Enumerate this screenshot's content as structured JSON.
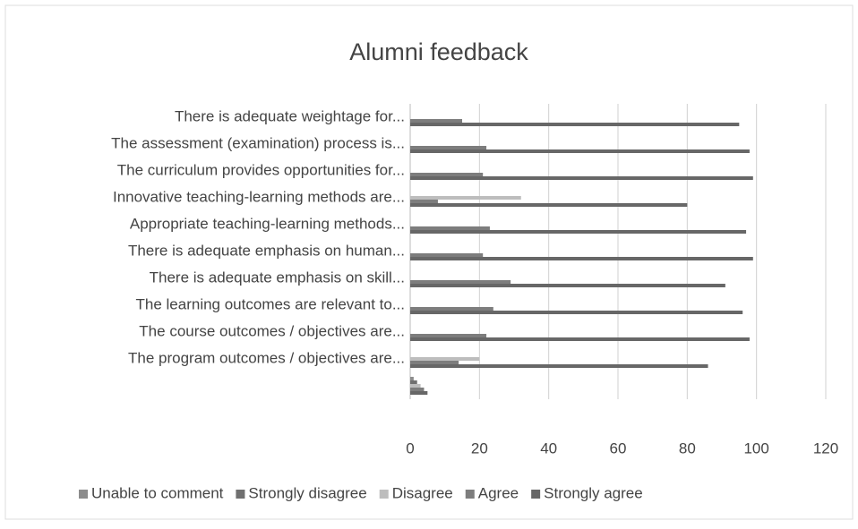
{
  "chart_data": {
    "type": "bar",
    "orientation": "horizontal",
    "title": "Alumni feedback",
    "categories": [
      "There is adequate weightage for...",
      "The assessment (examination) process is...",
      "The curriculum provides opportunities for...",
      "Innovative teaching-learning methods are...",
      "Appropriate teaching-learning methods...",
      "There is adequate emphasis on human...",
      "There is adequate emphasis on skill...",
      "The learning outcomes are relevant to...",
      "The course outcomes / objectives are...",
      "The program outcomes / objectives are...",
      null
    ],
    "series": [
      {
        "name": "Unable to comment",
        "color": "#8c8c8c",
        "values": [
          0,
          0,
          0,
          0,
          0,
          0,
          0,
          0,
          0,
          0,
          1
        ]
      },
      {
        "name": "Strongly disagree",
        "color": "#707070",
        "values": [
          0,
          0,
          0,
          0,
          0,
          0,
          0,
          0,
          0,
          0,
          2
        ]
      },
      {
        "name": "Disagree",
        "color": "#bdbdbd",
        "values": [
          0,
          0,
          0,
          32,
          0,
          0,
          0,
          0,
          0,
          20,
          3
        ]
      },
      {
        "name": "Agree",
        "color": "#7d7d7d",
        "values": [
          15,
          22,
          21,
          8,
          23,
          21,
          29,
          24,
          22,
          14,
          4
        ]
      },
      {
        "name": "Strongly agree",
        "color": "#676767",
        "values": [
          95,
          98,
          99,
          80,
          97,
          99,
          91,
          96,
          98,
          86,
          5
        ]
      }
    ],
    "xlim": [
      0,
      120
    ],
    "xticks": [
      0,
      20,
      40,
      60,
      80,
      100,
      120
    ],
    "grid": true,
    "legend": "bottom"
  }
}
